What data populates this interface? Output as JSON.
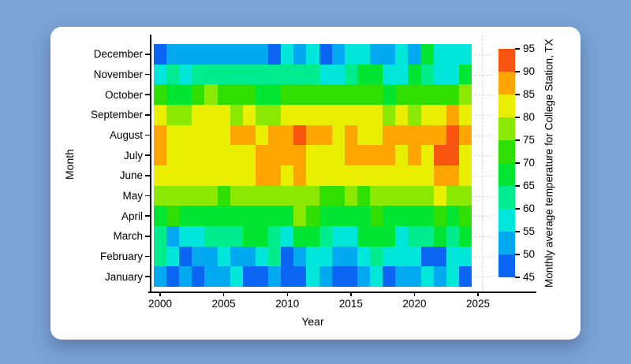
{
  "page": {
    "background_color": "#7BA3D6",
    "card_color": "#FFFFFF"
  },
  "chart_data": {
    "type": "heatmap",
    "xlabel": "Year",
    "ylabel": "Month",
    "colorbar_title": "Monthly average temperature for College Station, TX",
    "years_start": 2000,
    "years_end": 2024,
    "x_tick_labels": [
      "2000",
      "2005",
      "2010",
      "2015",
      "2020",
      "2025"
    ],
    "grid": "dashed remnants at right edge",
    "legend_position": "right colorbar",
    "rows_top_to_bottom": [
      {
        "month": "December",
        "values": [
          47,
          52,
          52,
          52,
          52,
          52,
          52,
          52,
          52,
          47,
          57,
          52,
          57,
          47,
          52,
          57,
          57,
          52,
          52,
          57,
          52,
          66,
          57,
          57,
          57
        ]
      },
      {
        "month": "November",
        "values": [
          58,
          62,
          58,
          62,
          62,
          62,
          62,
          62,
          62,
          62,
          62,
          62,
          62,
          58,
          58,
          62,
          67,
          67,
          58,
          58,
          67,
          62,
          58,
          58,
          67
        ]
      },
      {
        "month": "October",
        "values": [
          72,
          67,
          67,
          72,
          77,
          72,
          72,
          72,
          67,
          67,
          72,
          72,
          72,
          72,
          72,
          72,
          72,
          72,
          67,
          72,
          72,
          72,
          72,
          72,
          77
        ]
      },
      {
        "month": "September",
        "values": [
          82,
          78,
          78,
          82,
          82,
          82,
          77,
          82,
          78,
          78,
          82,
          82,
          82,
          82,
          82,
          82,
          82,
          82,
          78,
          82,
          78,
          82,
          82,
          87,
          82
        ]
      },
      {
        "month": "August",
        "values": [
          87,
          83,
          83,
          83,
          83,
          83,
          86,
          86,
          84,
          86,
          87,
          91,
          87,
          86,
          84,
          86,
          84,
          84,
          86,
          87,
          87,
          86,
          87,
          91,
          87
        ]
      },
      {
        "month": "July",
        "values": [
          87,
          83,
          83,
          83,
          83,
          83,
          83,
          83,
          86,
          87,
          87,
          87,
          84,
          83,
          83,
          86,
          86,
          86,
          87,
          84,
          87,
          84,
          92,
          91,
          84
        ]
      },
      {
        "month": "June",
        "values": [
          82,
          82,
          82,
          82,
          82,
          82,
          82,
          82,
          86,
          86,
          82,
          86,
          82,
          82,
          82,
          82,
          82,
          82,
          82,
          82,
          82,
          82,
          86,
          86,
          82
        ]
      },
      {
        "month": "May",
        "values": [
          77,
          77,
          77,
          77,
          77,
          73,
          77,
          77,
          77,
          77,
          77,
          77,
          77,
          73,
          73,
          77,
          73,
          77,
          77,
          77,
          77,
          77,
          81,
          77,
          77
        ]
      },
      {
        "month": "April",
        "values": [
          68,
          71,
          68,
          68,
          68,
          68,
          68,
          68,
          68,
          68,
          68,
          76,
          71,
          68,
          68,
          68,
          68,
          71,
          68,
          68,
          68,
          68,
          71,
          68,
          71
        ]
      },
      {
        "month": "March",
        "values": [
          62,
          53,
          58,
          58,
          62,
          62,
          62,
          67,
          67,
          62,
          58,
          67,
          67,
          62,
          58,
          58,
          67,
          67,
          67,
          58,
          62,
          62,
          67,
          62,
          67
        ]
      },
      {
        "month": "February",
        "values": [
          62,
          58,
          47,
          53,
          53,
          58,
          53,
          53,
          58,
          62,
          47,
          53,
          58,
          58,
          53,
          53,
          58,
          62,
          58,
          58,
          58,
          47,
          48,
          58,
          58
        ]
      },
      {
        "month": "January",
        "values": [
          52,
          48,
          52,
          48,
          52,
          52,
          57,
          48,
          48,
          52,
          48,
          48,
          57,
          52,
          48,
          48,
          52,
          57,
          48,
          52,
          52,
          57,
          52,
          57,
          48
        ]
      }
    ],
    "colorbar": {
      "min": 45,
      "max": 95,
      "step": 5,
      "tick_labels": [
        "45",
        "50",
        "55",
        "60",
        "65",
        "70",
        "75",
        "80",
        "85",
        "90",
        "95"
      ],
      "band_colors_low_to_high": [
        "#0A66F2",
        "#00A9F0",
        "#00E6DA",
        "#00EC8F",
        "#00E532",
        "#30DF00",
        "#8BE800",
        "#EAEE00",
        "#FFA502",
        "#F95410"
      ]
    },
    "gridline_color": "#D9D9D9"
  }
}
